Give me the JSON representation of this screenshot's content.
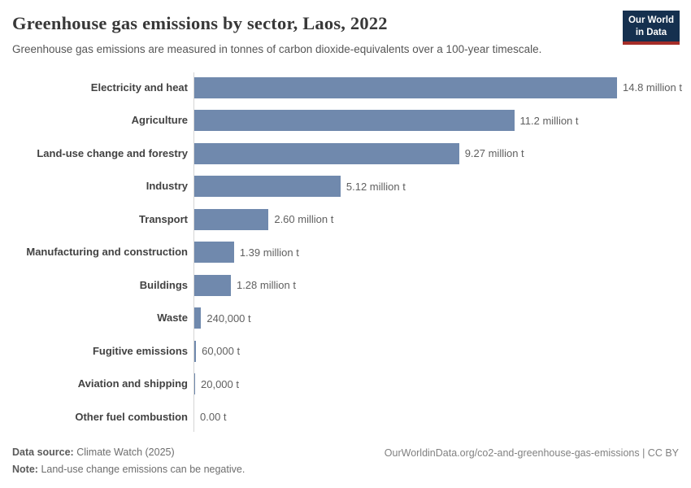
{
  "header": {
    "title": "Greenhouse gas emissions by sector, Laos, 2022",
    "subtitle": "Greenhouse gas emissions are measured in tonnes of carbon dioxide-equivalents over a 100-year timescale.",
    "logo": {
      "line1": "Our World",
      "line2": "in Data"
    }
  },
  "chart_data": {
    "type": "bar",
    "orientation": "horizontal",
    "title": "Greenhouse gas emissions by sector, Laos, 2022",
    "entity": "Laos",
    "year": 2022,
    "unit": "tonnes of carbon dioxide-equivalents",
    "categories": [
      "Electricity and heat",
      "Agriculture",
      "Land-use change and forestry",
      "Industry",
      "Transport",
      "Manufacturing and construction",
      "Buildings",
      "Waste",
      "Fugitive emissions",
      "Aviation and shipping",
      "Other fuel combustion"
    ],
    "values": [
      14800000,
      11200000,
      9270000,
      5120000,
      2600000,
      1390000,
      1280000,
      240000,
      60000,
      20000,
      0
    ],
    "value_labels": [
      "14.8 million t",
      "11.2 million t",
      "9.27 million t",
      "5.12 million t",
      "2.60 million t",
      "1.39 million t",
      "1.28 million t",
      "240,000 t",
      "60,000 t",
      "20,000 t",
      "0.00 t"
    ],
    "xlim": [
      0,
      14800000
    ],
    "grid": false,
    "legend": "none"
  },
  "sectors": [
    {
      "label": "Electricity and heat",
      "value": 14800000,
      "value_label": "14.8 million t"
    },
    {
      "label": "Agriculture",
      "value": 11200000,
      "value_label": "11.2 million t"
    },
    {
      "label": "Land-use change and forestry",
      "value": 9270000,
      "value_label": "9.27 million t"
    },
    {
      "label": "Industry",
      "value": 5120000,
      "value_label": "5.12 million t"
    },
    {
      "label": "Transport",
      "value": 2600000,
      "value_label": "2.60 million t"
    },
    {
      "label": "Manufacturing and construction",
      "value": 1390000,
      "value_label": "1.39 million t"
    },
    {
      "label": "Buildings",
      "value": 1280000,
      "value_label": "1.28 million t"
    },
    {
      "label": "Waste",
      "value": 240000,
      "value_label": "240,000 t"
    },
    {
      "label": "Fugitive emissions",
      "value": 60000,
      "value_label": "60,000 t"
    },
    {
      "label": "Aviation and shipping",
      "value": 20000,
      "value_label": "20,000 t"
    },
    {
      "label": "Other fuel combustion",
      "value": 0,
      "value_label": "0.00 t"
    }
  ],
  "footer": {
    "data_source_label": "Data source:",
    "data_source": "Climate Watch (2025)",
    "note_label": "Note:",
    "note": "Land-use change emissions can be negative.",
    "url": "OurWorldinData.org/co2-and-greenhouse-gas-emissions | CC BY"
  },
  "colors": {
    "bar": "#7089ad",
    "axis_line": "#d5d5d5",
    "logo_bg": "#15304f",
    "logo_red": "#a52d28",
    "title_text": "#383838"
  }
}
